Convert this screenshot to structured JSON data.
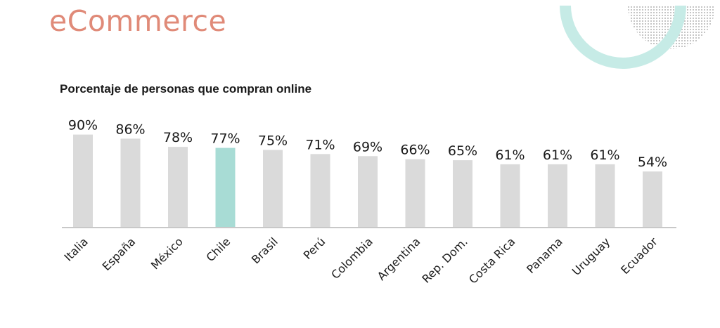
{
  "page": {
    "title": "eCommerce"
  },
  "colors": {
    "title": "#e08a78",
    "bar": "#dadada",
    "highlight": "#a8dcd5",
    "axis": "#c8c8c8",
    "text": "#1a1a1a",
    "ring": "#c6ebe6",
    "dots": "#8a8a8a"
  },
  "chart_data": {
    "type": "bar",
    "title": "Porcentaje de personas que compran online",
    "categories": [
      "Italia",
      "España",
      "México",
      "Chile",
      "Brasil",
      "Perú",
      "Colombia",
      "Argentina",
      "Rep. Dom.",
      "Costa Rica",
      "Panama",
      "Uruguay",
      "Ecuador"
    ],
    "values": [
      90,
      86,
      78,
      77,
      75,
      71,
      69,
      66,
      65,
      61,
      61,
      61,
      54
    ],
    "value_labels": [
      "90%",
      "86%",
      "78%",
      "77%",
      "75%",
      "71%",
      "69%",
      "66%",
      "65%",
      "61%",
      "61%",
      "61%",
      "54%"
    ],
    "highlight_category": "Chile",
    "xlabel": "",
    "ylabel": "",
    "ylim": [
      0,
      100
    ],
    "grid": false,
    "legend": "none"
  }
}
